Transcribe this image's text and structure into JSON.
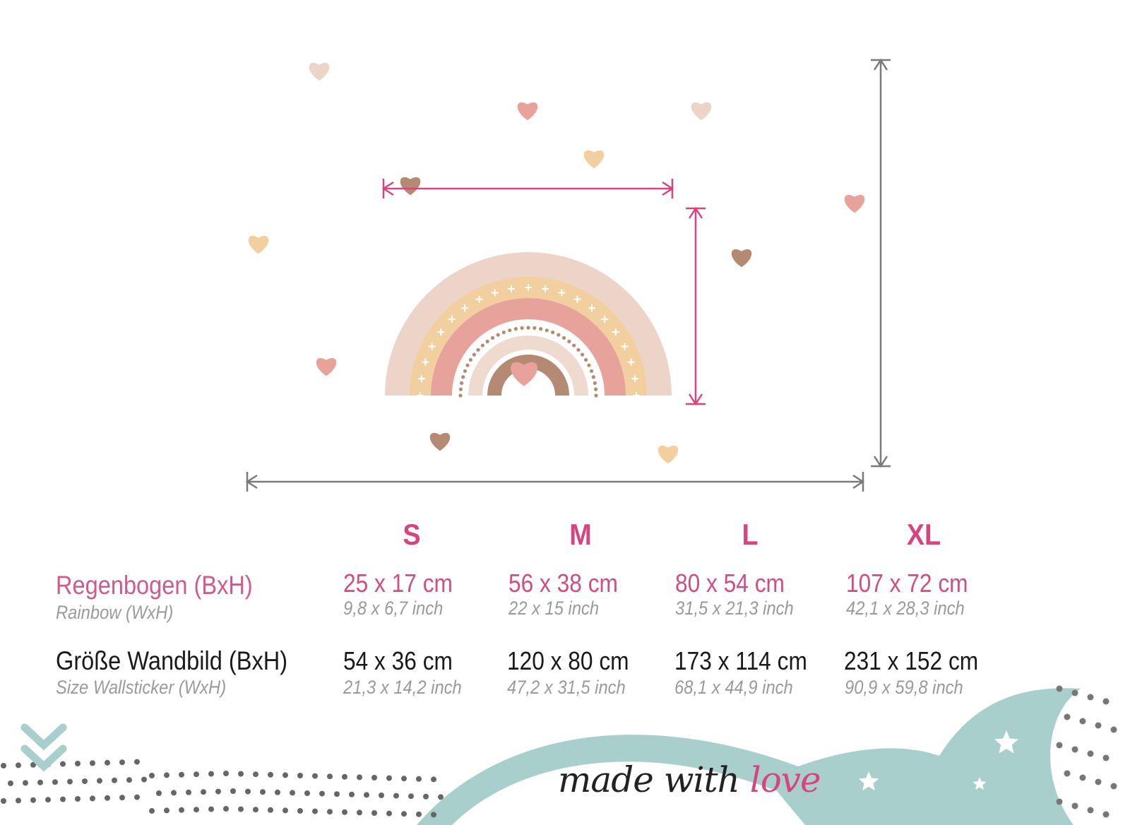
{
  "colors": {
    "accent_pink": "#d6457f",
    "label_gray": "#9a9a9a",
    "teal": "#a9cfcc",
    "arrow_gray": "#7a7a7a"
  },
  "sizes": [
    "S",
    "M",
    "L",
    "XL"
  ],
  "rows": [
    {
      "label": "Regenbogen (BxH)",
      "sublabel": "Rainbow (WxH)",
      "cm": [
        "25 x 17 cm",
        "56 x 38 cm",
        "80 x 54 cm",
        "107 x 72 cm"
      ],
      "inch": [
        "9,8 x 6,7 inch",
        "22 x 15 inch",
        "31,5 x 21,3 inch",
        "42,1 x 28,3 inch"
      ]
    },
    {
      "label": "Größe Wandbild (BxH)",
      "sublabel": "Size Wallsticker (WxH)",
      "cm": [
        "54 x 36 cm",
        "120 x 80 cm",
        "173 x 114 cm",
        "231 x 152 cm"
      ],
      "inch": [
        "21,3 x 14,2 inch",
        "47,2 x 31,5 inch",
        "68,1 x 44,9 inch",
        "90,9 x 59,8 inch"
      ]
    }
  ],
  "footer": {
    "made_with": "made with",
    "love": "love"
  },
  "icons": [
    "heart-icon",
    "star-icon",
    "chevron-down-icon",
    "rainbow-illustration",
    "dimension-arrow"
  ]
}
